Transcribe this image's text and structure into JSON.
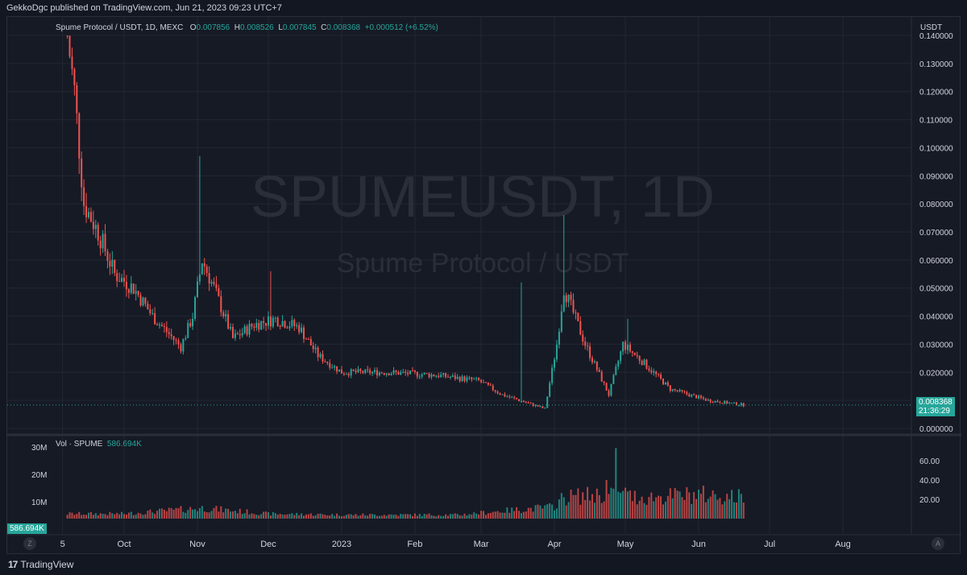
{
  "header": {
    "published": "GekkoDgc published on TradingView.com, Jun 21, 2023 09:23 UTC+7"
  },
  "legend": {
    "symbol": "Spume Protocol / USDT, 1D, MEXC",
    "o_label": "O",
    "o_value": "0.007856",
    "h_label": "H",
    "h_value": "0.008526",
    "l_label": "L",
    "l_value": "0.007845",
    "c_label": "C",
    "c_value": "0.008368",
    "change": "+0.000512 (+6.52%)"
  },
  "watermark": {
    "ticker": "SPUMEUSDT, 1D",
    "name": "Spume Protocol / USDT"
  },
  "price_axis": {
    "unit": "USDT",
    "ticks": [
      "0.140000",
      "0.130000",
      "0.120000",
      "0.110000",
      "0.100000",
      "0.090000",
      "0.080000",
      "0.070000",
      "0.060000",
      "0.050000",
      "0.040000",
      "0.030000",
      "0.020000",
      "0.010000",
      "0.000000"
    ],
    "last_price": "0.008368",
    "countdown": "21:36:29"
  },
  "volume": {
    "label": "Vol · SPUME",
    "value": "586.694K",
    "left_ticks": [
      "30M",
      "20M",
      "10M"
    ],
    "right_ticks": [
      "60.00",
      "40.00",
      "20.00"
    ],
    "tag": "586.694K"
  },
  "time_axis": {
    "labels": [
      "5",
      "Oct",
      "Nov",
      "Dec",
      "2023",
      "Feb",
      "Mar",
      "Apr",
      "May",
      "Jun",
      "Jul",
      "Aug"
    ]
  },
  "buttons": {
    "z": "Z",
    "a": "A"
  },
  "footer": {
    "brand": "TradingView",
    "logo_mark": "17"
  },
  "colors": {
    "up": "#26a69a",
    "down": "#ef5350",
    "bg": "#161a25",
    "grid": "#232733"
  },
  "chart_data": {
    "type": "candlestick",
    "title": "Spume Protocol / USDT, 1D, MEXC",
    "ylabel": "USDT",
    "ylim": [
      0,
      0.14
    ],
    "x_range": [
      "2022-09-01",
      "2023-08-31"
    ],
    "x_ticks": [
      {
        "label": "5",
        "date": "2022-09-05"
      },
      {
        "label": "Oct",
        "date": "2022-10-01"
      },
      {
        "label": "Nov",
        "date": "2022-11-01"
      },
      {
        "label": "Dec",
        "date": "2022-12-01"
      },
      {
        "label": "2023",
        "date": "2023-01-01"
      },
      {
        "label": "Feb",
        "date": "2023-02-01"
      },
      {
        "label": "Mar",
        "date": "2023-03-01"
      },
      {
        "label": "Apr",
        "date": "2023-04-01"
      },
      {
        "label": "May",
        "date": "2023-05-01"
      },
      {
        "label": "Jun",
        "date": "2023-06-01"
      },
      {
        "label": "Jul",
        "date": "2023-07-01"
      },
      {
        "label": "Aug",
        "date": "2023-08-01"
      }
    ],
    "price_path": [
      {
        "date": "2022-09-07",
        "close": 0.14
      },
      {
        "date": "2022-09-10",
        "close": 0.12
      },
      {
        "date": "2022-09-14",
        "close": 0.08
      },
      {
        "date": "2022-09-20",
        "close": 0.07
      },
      {
        "date": "2022-09-27",
        "close": 0.055
      },
      {
        "date": "2022-10-05",
        "close": 0.05
      },
      {
        "date": "2022-10-13",
        "close": 0.04
      },
      {
        "date": "2022-10-25",
        "close": 0.029
      },
      {
        "date": "2022-10-30",
        "close": 0.04
      },
      {
        "date": "2022-11-03",
        "close": 0.06
      },
      {
        "date": "2022-11-08",
        "close": 0.05
      },
      {
        "date": "2022-11-16",
        "close": 0.032
      },
      {
        "date": "2022-11-25",
        "close": 0.037
      },
      {
        "date": "2022-12-04",
        "close": 0.039
      },
      {
        "date": "2022-12-14",
        "close": 0.036
      },
      {
        "date": "2022-12-22",
        "close": 0.026
      },
      {
        "date": "2023-01-01",
        "close": 0.02
      },
      {
        "date": "2023-01-20",
        "close": 0.02
      },
      {
        "date": "2023-02-10",
        "close": 0.019
      },
      {
        "date": "2023-02-28",
        "close": 0.017
      },
      {
        "date": "2023-03-10",
        "close": 0.012
      },
      {
        "date": "2023-03-28",
        "close": 0.007
      },
      {
        "date": "2023-04-02",
        "close": 0.03
      },
      {
        "date": "2023-04-05",
        "close": 0.05
      },
      {
        "date": "2023-04-14",
        "close": 0.03
      },
      {
        "date": "2023-04-24",
        "close": 0.012
      },
      {
        "date": "2023-04-30",
        "close": 0.03
      },
      {
        "date": "2023-05-08",
        "close": 0.024
      },
      {
        "date": "2023-05-20",
        "close": 0.014
      },
      {
        "date": "2023-06-05",
        "close": 0.01
      },
      {
        "date": "2023-06-20",
        "close": 0.008368
      }
    ],
    "spikes": [
      {
        "date": "2022-11-02",
        "high": 0.097
      },
      {
        "date": "2022-12-02",
        "high": 0.056
      },
      {
        "date": "2023-03-18",
        "high": 0.052
      },
      {
        "date": "2023-04-05",
        "high": 0.076
      },
      {
        "date": "2023-05-02",
        "high": 0.039
      }
    ],
    "volume_series": {
      "name": "Vol · SPUME",
      "ylim": [
        0,
        75
      ],
      "path": [
        {
          "date": "2022-09-07",
          "value": 5
        },
        {
          "date": "2022-10-01",
          "value": 5
        },
        {
          "date": "2022-11-03",
          "value": 11
        },
        {
          "date": "2022-12-01",
          "value": 5
        },
        {
          "date": "2023-01-01",
          "value": 4
        },
        {
          "date": "2023-02-20",
          "value": 4
        },
        {
          "date": "2023-03-10",
          "value": 8
        },
        {
          "date": "2023-03-31",
          "value": 12
        },
        {
          "date": "2023-04-05",
          "value": 22
        },
        {
          "date": "2023-04-20",
          "value": 25
        },
        {
          "date": "2023-05-10",
          "value": 22
        },
        {
          "date": "2023-06-01",
          "value": 25
        },
        {
          "date": "2023-06-20",
          "value": 22
        }
      ],
      "spikes": [
        {
          "date": "2023-04-23",
          "value": 40
        },
        {
          "date": "2023-04-27",
          "value": 73
        },
        {
          "date": "2023-05-01",
          "value": 32
        }
      ]
    }
  }
}
